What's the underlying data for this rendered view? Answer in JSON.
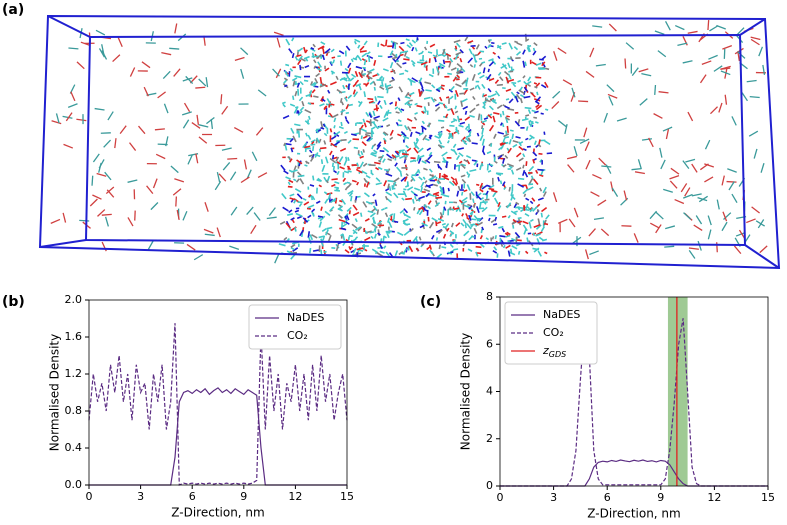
{
  "panel_labels": [
    "(a)",
    "(b)",
    "(c)"
  ],
  "chart_data": [
    {
      "type": "line",
      "xlabel": "Z-Direction, nm",
      "ylabel": "Normalised Density",
      "x": [
        0,
        0.25,
        0.5,
        0.75,
        1,
        1.25,
        1.5,
        1.75,
        2,
        2.25,
        2.5,
        2.75,
        3,
        3.25,
        3.5,
        3.75,
        4,
        4.25,
        4.5,
        4.75,
        5,
        5.25,
        5.5,
        5.75,
        6,
        6.25,
        6.5,
        6.75,
        7,
        7.25,
        7.5,
        7.75,
        8,
        8.25,
        8.5,
        8.75,
        9,
        9.25,
        9.5,
        9.75,
        10,
        10.25,
        10.5,
        10.75,
        11,
        11.25,
        11.5,
        11.75,
        12,
        12.25,
        12.5,
        12.75,
        13,
        13.25,
        13.5,
        13.75,
        14,
        14.25,
        14.5,
        14.75,
        15
      ],
      "xlim": [
        0,
        15
      ],
      "xticks": [
        0,
        3,
        6,
        9,
        12,
        15
      ],
      "ylim": [
        0,
        2
      ],
      "yticks": [
        {
          "value": 0,
          "label": "0.0"
        },
        {
          "value": 0.4,
          "label": "0.4"
        },
        {
          "value": 0.8,
          "label": "0.8"
        },
        {
          "value": 1.2,
          "label": "1.2"
        },
        {
          "value": 1.6,
          "label": "1.6"
        },
        {
          "value": 2,
          "label": "2.0"
        }
      ],
      "legend": "upper-right",
      "series": [
        {
          "name": "NaDES",
          "color": "#5b2c83",
          "dash": false,
          "values": [
            0,
            0,
            0,
            0,
            0,
            0,
            0,
            0,
            0,
            0,
            0,
            0,
            0,
            0,
            0,
            0,
            0,
            0,
            0,
            0,
            0.3,
            0.9,
            1.0,
            1.02,
            0.99,
            1.03,
            1.0,
            1.04,
            0.98,
            1.02,
            1.05,
            1.0,
            1.03,
            0.99,
            1.04,
            1.01,
            0.98,
            1.03,
            1.0,
            0.97,
            0.4,
            0,
            0,
            0,
            0,
            0,
            0,
            0,
            0,
            0,
            0,
            0,
            0,
            0,
            0,
            0,
            0,
            0,
            0,
            0,
            0
          ]
        },
        {
          "name": "CO₂",
          "color": "#5b2c83",
          "dash": true,
          "values": [
            0.7,
            1.2,
            0.9,
            1.1,
            0.8,
            1.3,
            1.0,
            1.4,
            0.9,
            1.2,
            0.7,
            1.3,
            1.0,
            1.1,
            0.6,
            1.2,
            0.9,
            1.3,
            0.6,
            0.9,
            1.75,
            0.0,
            0.02,
            0.01,
            0.02,
            0.01,
            0.02,
            0.01,
            0.02,
            0.01,
            0.02,
            0.01,
            0.02,
            0.01,
            0.02,
            0.01,
            0.02,
            0.01,
            0.02,
            0.05,
            1.65,
            0.6,
            1.4,
            0.8,
            1.2,
            0.6,
            1.1,
            0.9,
            1.3,
            0.8,
            1.2,
            0.7,
            1.3,
            0.8,
            1.4,
            0.9,
            1.2,
            0.7,
            1.0,
            1.2,
            0.7
          ]
        }
      ]
    },
    {
      "type": "line",
      "xlabel": "Z-Direction, nm",
      "ylabel": "Normalised Density",
      "x": [
        0,
        0.25,
        0.5,
        0.75,
        1,
        1.25,
        1.5,
        1.75,
        2,
        2.25,
        2.5,
        2.75,
        3,
        3.25,
        3.5,
        3.75,
        4,
        4.25,
        4.5,
        4.75,
        5,
        5.25,
        5.5,
        5.75,
        6,
        6.25,
        6.5,
        6.75,
        7,
        7.25,
        7.5,
        7.75,
        8,
        8.25,
        8.5,
        8.75,
        9,
        9.25,
        9.5,
        9.75,
        10,
        10.25,
        10.5,
        10.75,
        11,
        11.25,
        11.5,
        11.75,
        12,
        12.25,
        12.5,
        12.75,
        13,
        13.25,
        13.5,
        13.75,
        14,
        14.25,
        14.5,
        14.75,
        15
      ],
      "xlim": [
        0,
        15
      ],
      "xticks": [
        0,
        3,
        6,
        9,
        12,
        15
      ],
      "ylim": [
        0,
        8
      ],
      "yticks": [
        0,
        2,
        4,
        6,
        8
      ],
      "legend": "upper-left",
      "series": [
        {
          "name": "NaDES",
          "color": "#5b2c83",
          "dash": false,
          "values": [
            0,
            0,
            0,
            0,
            0,
            0,
            0,
            0,
            0,
            0,
            0,
            0,
            0,
            0,
            0,
            0,
            0,
            0,
            0,
            0,
            0.3,
            0.8,
            1.0,
            1.05,
            1.02,
            1.08,
            1.04,
            1.1,
            1.06,
            1.03,
            1.09,
            1.05,
            1.1,
            1.04,
            1.07,
            1.02,
            1.08,
            1.05,
            0.9,
            0.6,
            0.3,
            0.1,
            0,
            0,
            0,
            0,
            0,
            0,
            0,
            0,
            0,
            0,
            0,
            0,
            0,
            0,
            0,
            0,
            0,
            0,
            0
          ]
        },
        {
          "name": "CO₂",
          "color": "#5b2c83",
          "dash": true,
          "values": [
            0,
            0,
            0,
            0,
            0,
            0,
            0,
            0,
            0,
            0,
            0,
            0,
            0,
            0,
            0,
            0,
            0.3,
            1.5,
            4.5,
            7.1,
            5.5,
            1.5,
            0.3,
            0.05,
            0.05,
            0.05,
            0.05,
            0.05,
            0.05,
            0.05,
            0.05,
            0.05,
            0.05,
            0.05,
            0.05,
            0.05,
            0.05,
            0.3,
            1.5,
            3.5,
            6.0,
            7.1,
            4.0,
            0.8,
            0.1,
            0,
            0,
            0,
            0,
            0,
            0,
            0,
            0,
            0,
            0,
            0,
            0,
            0,
            0,
            0,
            0
          ]
        }
      ],
      "gds": {
        "name": "z",
        "name_sub": "GDS",
        "color": "#e02020",
        "x": 9.9,
        "band": [
          9.4,
          10.5
        ],
        "band_color": "#7fb870"
      }
    }
  ]
}
